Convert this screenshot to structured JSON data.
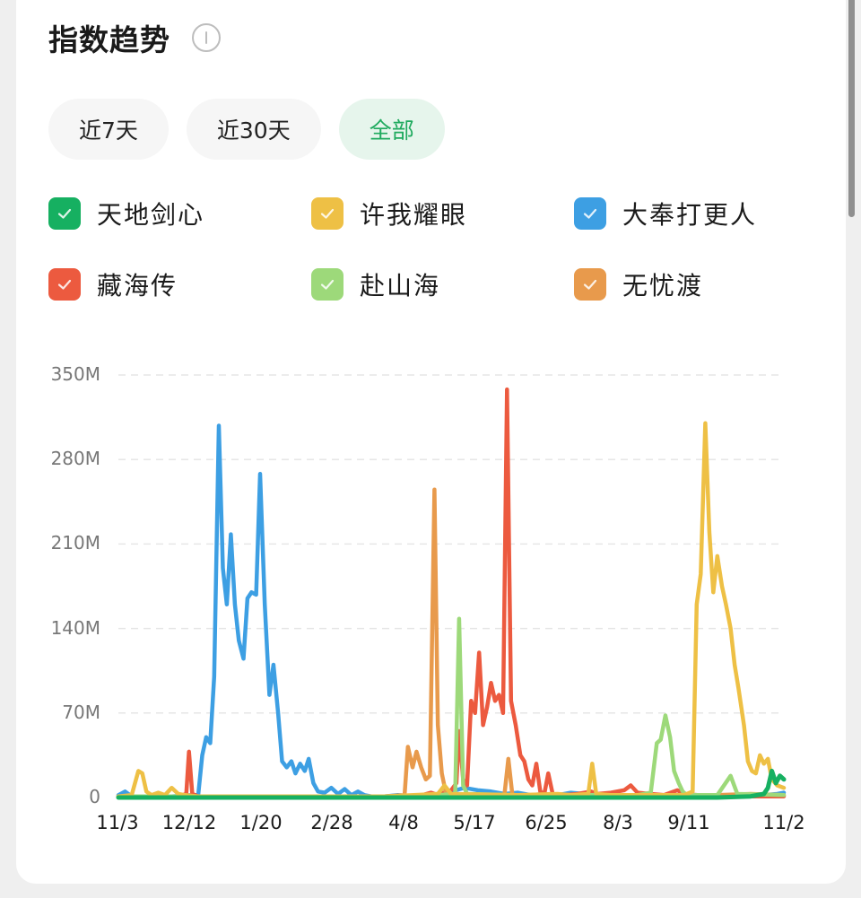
{
  "header": {
    "title": "指数趋势",
    "info_icon": "info-circle-icon"
  },
  "range_tabs": [
    {
      "label": "近7天",
      "active": false
    },
    {
      "label": "近30天",
      "active": false
    },
    {
      "label": "全部",
      "active": true
    }
  ],
  "legend": [
    {
      "label": "天地剑心",
      "color": "#16b061",
      "checked": true
    },
    {
      "label": "许我耀眼",
      "color": "#eec045",
      "checked": true
    },
    {
      "label": "大奉打更人",
      "color": "#3d9fe3",
      "checked": true
    },
    {
      "label": "藏海传",
      "color": "#ec5a3f",
      "checked": true
    },
    {
      "label": "赴山海",
      "color": "#9dd97a",
      "checked": true
    },
    {
      "label": "无忧渡",
      "color": "#e89a4c",
      "checked": true
    }
  ],
  "colors": {
    "accent": "#1faa5e",
    "accent_bg": "#e6f5ec",
    "grid": "#e6e6e6",
    "axis_text": "#777777"
  },
  "chart_data": {
    "type": "line",
    "title": "指数趋势",
    "xlabel": "",
    "ylabel": "",
    "ylim": [
      0,
      350
    ],
    "y_unit": "M",
    "y_ticks": [
      "0",
      "70M",
      "140M",
      "210M",
      "280M",
      "350M"
    ],
    "x_ticks": [
      "11/3",
      "12/12",
      "1/20",
      "2/28",
      "4/8",
      "5/17",
      "6/25",
      "8/3",
      "9/11",
      "11/2"
    ],
    "grid": "horizontal-dashed",
    "legend_position": "top",
    "x_index_range": [
      0,
      100
    ],
    "series": [
      {
        "name": "大奉打更人",
        "color": "#3d9fe3",
        "points": [
          [
            0,
            2
          ],
          [
            1,
            5
          ],
          [
            2,
            1
          ],
          [
            5,
            1
          ],
          [
            8,
            1
          ],
          [
            11,
            2
          ],
          [
            12,
            2
          ],
          [
            12.6,
            35
          ],
          [
            13.2,
            50
          ],
          [
            13.8,
            45
          ],
          [
            14.4,
            100
          ],
          [
            15.1,
            308
          ],
          [
            15.7,
            190
          ],
          [
            16.3,
            160
          ],
          [
            16.9,
            218
          ],
          [
            17.5,
            160
          ],
          [
            18.1,
            130
          ],
          [
            18.8,
            115
          ],
          [
            19.4,
            165
          ],
          [
            20,
            170
          ],
          [
            20.7,
            168
          ],
          [
            21.3,
            268
          ],
          [
            22,
            160
          ],
          [
            22.7,
            85
          ],
          [
            23.3,
            110
          ],
          [
            24,
            70
          ],
          [
            24.6,
            30
          ],
          [
            25.3,
            25
          ],
          [
            26,
            30
          ],
          [
            26.6,
            20
          ],
          [
            27.3,
            28
          ],
          [
            28,
            22
          ],
          [
            28.6,
            32
          ],
          [
            29.3,
            12
          ],
          [
            30,
            5
          ],
          [
            31,
            4
          ],
          [
            32,
            8
          ],
          [
            33,
            3
          ],
          [
            34,
            7
          ],
          [
            35,
            2
          ],
          [
            36,
            5
          ],
          [
            37,
            2
          ],
          [
            38,
            1
          ],
          [
            40,
            1
          ],
          [
            42,
            2
          ],
          [
            44,
            1
          ],
          [
            46,
            2
          ],
          [
            48,
            3
          ],
          [
            50,
            5
          ],
          [
            52,
            8
          ],
          [
            54,
            6
          ],
          [
            56,
            5
          ],
          [
            58,
            3
          ],
          [
            60,
            4
          ],
          [
            62,
            2
          ],
          [
            64,
            3
          ],
          [
            66,
            2
          ],
          [
            68,
            4
          ],
          [
            70,
            3
          ],
          [
            72,
            2
          ],
          [
            74,
            3
          ],
          [
            76,
            1
          ],
          [
            80,
            1
          ],
          [
            85,
            1
          ],
          [
            90,
            2
          ],
          [
            95,
            1
          ],
          [
            97,
            2
          ],
          [
            99,
            3
          ],
          [
            100,
            4
          ]
        ]
      },
      {
        "name": "藏海传",
        "color": "#ec5a3f",
        "points": [
          [
            0,
            1
          ],
          [
            9,
            1
          ],
          [
            10.2,
            3
          ],
          [
            10.6,
            38
          ],
          [
            11.1,
            3
          ],
          [
            12,
            1
          ],
          [
            30,
            1
          ],
          [
            40,
            1
          ],
          [
            45,
            1
          ],
          [
            47,
            4
          ],
          [
            48,
            2
          ],
          [
            50,
            6
          ],
          [
            50.8,
            12
          ],
          [
            51.2,
            55
          ],
          [
            51.8,
            15
          ],
          [
            52.4,
            10
          ],
          [
            53,
            80
          ],
          [
            53.6,
            70
          ],
          [
            54.2,
            120
          ],
          [
            54.8,
            60
          ],
          [
            55.4,
            75
          ],
          [
            56,
            95
          ],
          [
            56.6,
            80
          ],
          [
            57.2,
            85
          ],
          [
            57.8,
            70
          ],
          [
            58.4,
            338
          ],
          [
            59,
            80
          ],
          [
            59.7,
            60
          ],
          [
            60.4,
            35
          ],
          [
            61,
            30
          ],
          [
            61.6,
            15
          ],
          [
            62.2,
            10
          ],
          [
            62.8,
            28
          ],
          [
            63.4,
            5
          ],
          [
            64,
            3
          ],
          [
            64.6,
            20
          ],
          [
            65.3,
            2
          ],
          [
            67,
            2
          ],
          [
            69,
            3
          ],
          [
            71,
            5
          ],
          [
            72,
            3
          ],
          [
            74,
            4
          ],
          [
            76,
            6
          ],
          [
            77,
            10
          ],
          [
            78,
            4
          ],
          [
            80,
            3
          ],
          [
            82,
            2
          ],
          [
            84,
            6
          ],
          [
            85,
            3
          ],
          [
            87,
            2
          ],
          [
            90,
            1
          ],
          [
            95,
            1
          ],
          [
            100,
            1
          ]
        ]
      },
      {
        "name": "无忧渡",
        "color": "#e89a4c",
        "points": [
          [
            0,
            1
          ],
          [
            40,
            1
          ],
          [
            43,
            2
          ],
          [
            43.5,
            42
          ],
          [
            44.2,
            25
          ],
          [
            44.8,
            38
          ],
          [
            45.5,
            25
          ],
          [
            46.2,
            15
          ],
          [
            46.8,
            18
          ],
          [
            47.5,
            255
          ],
          [
            48,
            60
          ],
          [
            48.6,
            20
          ],
          [
            49.2,
            4
          ],
          [
            50,
            2
          ],
          [
            52,
            2
          ],
          [
            58,
            2
          ],
          [
            58.6,
            32
          ],
          [
            59.2,
            2
          ],
          [
            62,
            2
          ],
          [
            70,
            2
          ],
          [
            76,
            2
          ],
          [
            85,
            2
          ],
          [
            90,
            2
          ],
          [
            95,
            3
          ],
          [
            100,
            2
          ]
        ]
      },
      {
        "name": "赴山海",
        "color": "#9dd97a",
        "points": [
          [
            0,
            1
          ],
          [
            30,
            1
          ],
          [
            45,
            1
          ],
          [
            48,
            2
          ],
          [
            50.6,
            3
          ],
          [
            51.2,
            148
          ],
          [
            51.8,
            10
          ],
          [
            52.4,
            3
          ],
          [
            60,
            2
          ],
          [
            70,
            2
          ],
          [
            78,
            2
          ],
          [
            80,
            4
          ],
          [
            80.9,
            45
          ],
          [
            81.5,
            48
          ],
          [
            82.2,
            68
          ],
          [
            82.9,
            50
          ],
          [
            83.5,
            22
          ],
          [
            84.2,
            12
          ],
          [
            84.8,
            5
          ],
          [
            85.4,
            2
          ],
          [
            90,
            2
          ],
          [
            92,
            18
          ],
          [
            93,
            3
          ],
          [
            100,
            2
          ]
        ]
      },
      {
        "name": "许我耀眼",
        "color": "#eec045",
        "points": [
          [
            0,
            1
          ],
          [
            2,
            2
          ],
          [
            3,
            22
          ],
          [
            3.6,
            20
          ],
          [
            4.2,
            5
          ],
          [
            5,
            2
          ],
          [
            6,
            4
          ],
          [
            7,
            2
          ],
          [
            8,
            8
          ],
          [
            9,
            3
          ],
          [
            10,
            2
          ],
          [
            12,
            1
          ],
          [
            20,
            1
          ],
          [
            30,
            1
          ],
          [
            40,
            1
          ],
          [
            48,
            3
          ],
          [
            49,
            10
          ],
          [
            50,
            3
          ],
          [
            60,
            2
          ],
          [
            66,
            3
          ],
          [
            68,
            2
          ],
          [
            70.6,
            3
          ],
          [
            71.2,
            28
          ],
          [
            71.8,
            3
          ],
          [
            74,
            2
          ],
          [
            78,
            2
          ],
          [
            82,
            2
          ],
          [
            85,
            2
          ],
          [
            86.3,
            5
          ],
          [
            86.9,
            160
          ],
          [
            87.5,
            185
          ],
          [
            88.2,
            310
          ],
          [
            88.8,
            220
          ],
          [
            89.4,
            170
          ],
          [
            90,
            200
          ],
          [
            90.7,
            175
          ],
          [
            91.3,
            160
          ],
          [
            92,
            140
          ],
          [
            92.6,
            110
          ],
          [
            93.2,
            90
          ],
          [
            94,
            60
          ],
          [
            94.6,
            30
          ],
          [
            95.2,
            22
          ],
          [
            95.8,
            20
          ],
          [
            96.4,
            35
          ],
          [
            97,
            28
          ],
          [
            97.6,
            32
          ],
          [
            98.2,
            15
          ],
          [
            99,
            10
          ],
          [
            100,
            8
          ]
        ]
      },
      {
        "name": "天地剑心",
        "color": "#16b061",
        "points": [
          [
            0,
            0
          ],
          [
            20,
            0
          ],
          [
            40,
            0
          ],
          [
            60,
            0
          ],
          [
            70,
            0
          ],
          [
            80,
            0
          ],
          [
            90,
            0
          ],
          [
            95,
            1
          ],
          [
            96,
            2
          ],
          [
            97,
            3
          ],
          [
            97.6,
            8
          ],
          [
            98.2,
            22
          ],
          [
            98.8,
            12
          ],
          [
            99.4,
            18
          ],
          [
            100,
            15
          ]
        ]
      }
    ]
  }
}
